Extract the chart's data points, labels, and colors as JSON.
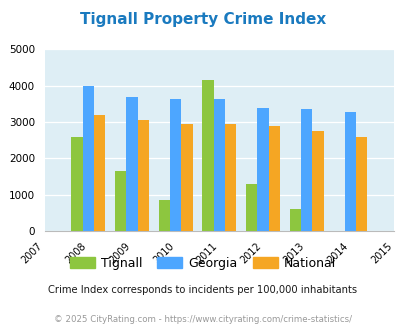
{
  "title": "Tignall Property Crime Index",
  "years": [
    2007,
    2008,
    2009,
    2010,
    2011,
    2012,
    2013,
    2014,
    2015
  ],
  "data_years": [
    2008,
    2009,
    2010,
    2011,
    2012,
    2013,
    2014
  ],
  "tignall": [
    2600,
    1650,
    850,
    4150,
    1300,
    600,
    0
  ],
  "georgia": [
    4000,
    3680,
    3650,
    3650,
    3400,
    3350,
    3280
  ],
  "national": [
    3200,
    3050,
    2950,
    2950,
    2900,
    2750,
    2600
  ],
  "color_tignall": "#8dc63f",
  "color_georgia": "#4da6ff",
  "color_national": "#f5a623",
  "bg_color": "#deeef5",
  "ylim": [
    0,
    5000
  ],
  "yticks": [
    0,
    1000,
    2000,
    3000,
    4000,
    5000
  ],
  "bar_width": 0.26,
  "subtitle": "Crime Index corresponds to incidents per 100,000 inhabitants",
  "footer": "© 2025 CityRating.com - https://www.cityrating.com/crime-statistics/",
  "legend_labels": [
    "Tignall",
    "Georgia",
    "National"
  ],
  "title_color": "#1a7abf",
  "subtitle_color": "#1a1a1a",
  "footer_color": "#999999"
}
